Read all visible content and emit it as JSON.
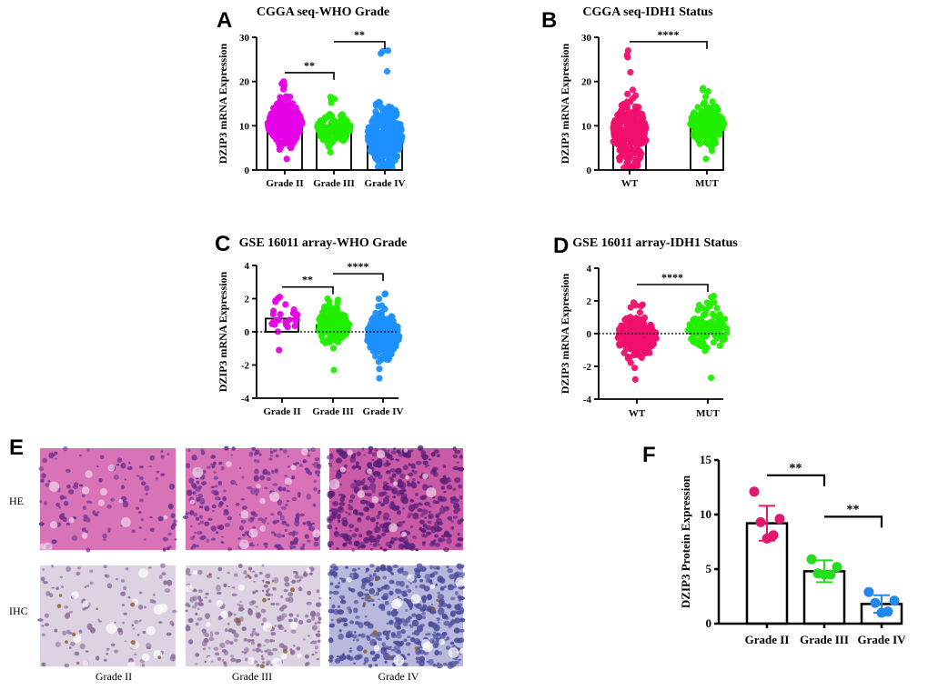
{
  "figure": {
    "panels": {
      "A": {
        "letter": "A"
      },
      "B": {
        "letter": "B"
      },
      "C": {
        "letter": "C"
      },
      "D": {
        "letter": "D"
      },
      "E": {
        "letter": "E"
      },
      "F": {
        "letter": "F"
      }
    }
  },
  "colors": {
    "magenta": "#e600e6",
    "green": "#22ee00",
    "blue": "#1e90ff",
    "pink": "#f0106e",
    "bar_outline": "#000000",
    "he_stain": "#d873b8",
    "ihc_stain": "#ddd2e2",
    "ihc_stain_iv": "#b8b8dc"
  },
  "histology": {
    "row_labels": [
      "HE",
      "IHC"
    ],
    "column_labels": [
      "Grade II",
      "Grade III",
      "Grade IV"
    ]
  },
  "chart_data": [
    {
      "id": "A",
      "type": "bar",
      "title": "CGGA seq-WHO Grade",
      "ylabel": "DZIP3 mRNA Expression",
      "ylim": [
        0,
        30
      ],
      "yticks": [
        0,
        10,
        20,
        30
      ],
      "categories": [
        "Grade II",
        "Grade III",
        "Grade IV"
      ],
      "values": [
        10.5,
        9.3,
        7.8
      ],
      "point_ranges": [
        [
          2.5,
          20
        ],
        [
          4,
          16.5
        ],
        [
          0.5,
          27
        ]
      ],
      "point_colors": [
        "#e600e6",
        "#22ee00",
        "#1e90ff"
      ],
      "significance": [
        {
          "between": [
            0,
            1
          ],
          "label": "**",
          "y": 22
        },
        {
          "between": [
            1,
            2
          ],
          "label": "**",
          "y": 29
        }
      ]
    },
    {
      "id": "B",
      "type": "bar",
      "title": "CGGA seq-IDH1 Status",
      "ylabel": "DZIP3 mRNA Expression",
      "ylim": [
        0,
        30
      ],
      "yticks": [
        0,
        10,
        20,
        30
      ],
      "categories": [
        "WT",
        "MUT"
      ],
      "values": [
        8.3,
        10.3
      ],
      "point_ranges": [
        [
          0.5,
          27
        ],
        [
          2.5,
          18.5
        ]
      ],
      "point_colors": [
        "#f0106e",
        "#22ee00"
      ],
      "significance": [
        {
          "between": [
            0,
            1
          ],
          "label": "****",
          "y": 29
        }
      ]
    },
    {
      "id": "C",
      "type": "bar",
      "title": "GSE 16011 array-WHO Grade",
      "ylabel": "DZIP3 mRNA Expression",
      "ylim": [
        -4,
        4
      ],
      "yticks": [
        -4,
        -2,
        0,
        2,
        4
      ],
      "categories": [
        "Grade II",
        "Grade III",
        "Grade IV"
      ],
      "values": [
        0.8,
        0.4,
        -0.2
      ],
      "point_ranges": [
        [
          -1.1,
          2.1
        ],
        [
          -2.3,
          2.0
        ],
        [
          -2.8,
          2.3
        ]
      ],
      "point_colors": [
        "#e600e6",
        "#22ee00",
        "#1e90ff"
      ],
      "significance": [
        {
          "between": [
            0,
            1
          ],
          "label": "**",
          "y": 2.7
        },
        {
          "between": [
            1,
            2
          ],
          "label": "****",
          "y": 3.5
        }
      ]
    },
    {
      "id": "D",
      "type": "bar",
      "title": "GSE 16011 array-IDH1 Status",
      "ylabel": "DZIP3 mRNA Expression",
      "ylim": [
        -4,
        4
      ],
      "yticks": [
        -4,
        -2,
        0,
        2,
        4
      ],
      "categories": [
        "WT",
        "MUT"
      ],
      "values": [
        -0.2,
        0.3
      ],
      "point_ranges": [
        [
          -2.8,
          1.9
        ],
        [
          -2.7,
          2.3
        ]
      ],
      "point_colors": [
        "#f0106e",
        "#22ee00"
      ],
      "significance": [
        {
          "between": [
            0,
            1
          ],
          "label": "****",
          "y": 3.0
        }
      ]
    },
    {
      "id": "F",
      "type": "bar",
      "title": "",
      "ylabel": "DZIP3 Protein Expression",
      "ylim": [
        0,
        15
      ],
      "yticks": [
        0,
        5,
        10,
        15
      ],
      "categories": [
        "Grade II",
        "Grade III",
        "Grade IV"
      ],
      "values": [
        9.2,
        4.8,
        1.8
      ],
      "errors": [
        1.6,
        1.0,
        0.8
      ],
      "points": [
        [
          12.1,
          9.6,
          9.3,
          8.1,
          7.8
        ],
        [
          5.9,
          5.2,
          4.6,
          4.5,
          4.5
        ],
        [
          2.9,
          2.1,
          1.9,
          1.1,
          1.0
        ]
      ],
      "point_colors": [
        "#e0186e",
        "#22dd22",
        "#2288ee"
      ],
      "significance": [
        {
          "between": [
            0,
            1
          ],
          "label": "**",
          "y": 13.6
        },
        {
          "between": [
            1,
            2
          ],
          "label": "**",
          "y": 9.8
        }
      ]
    }
  ]
}
